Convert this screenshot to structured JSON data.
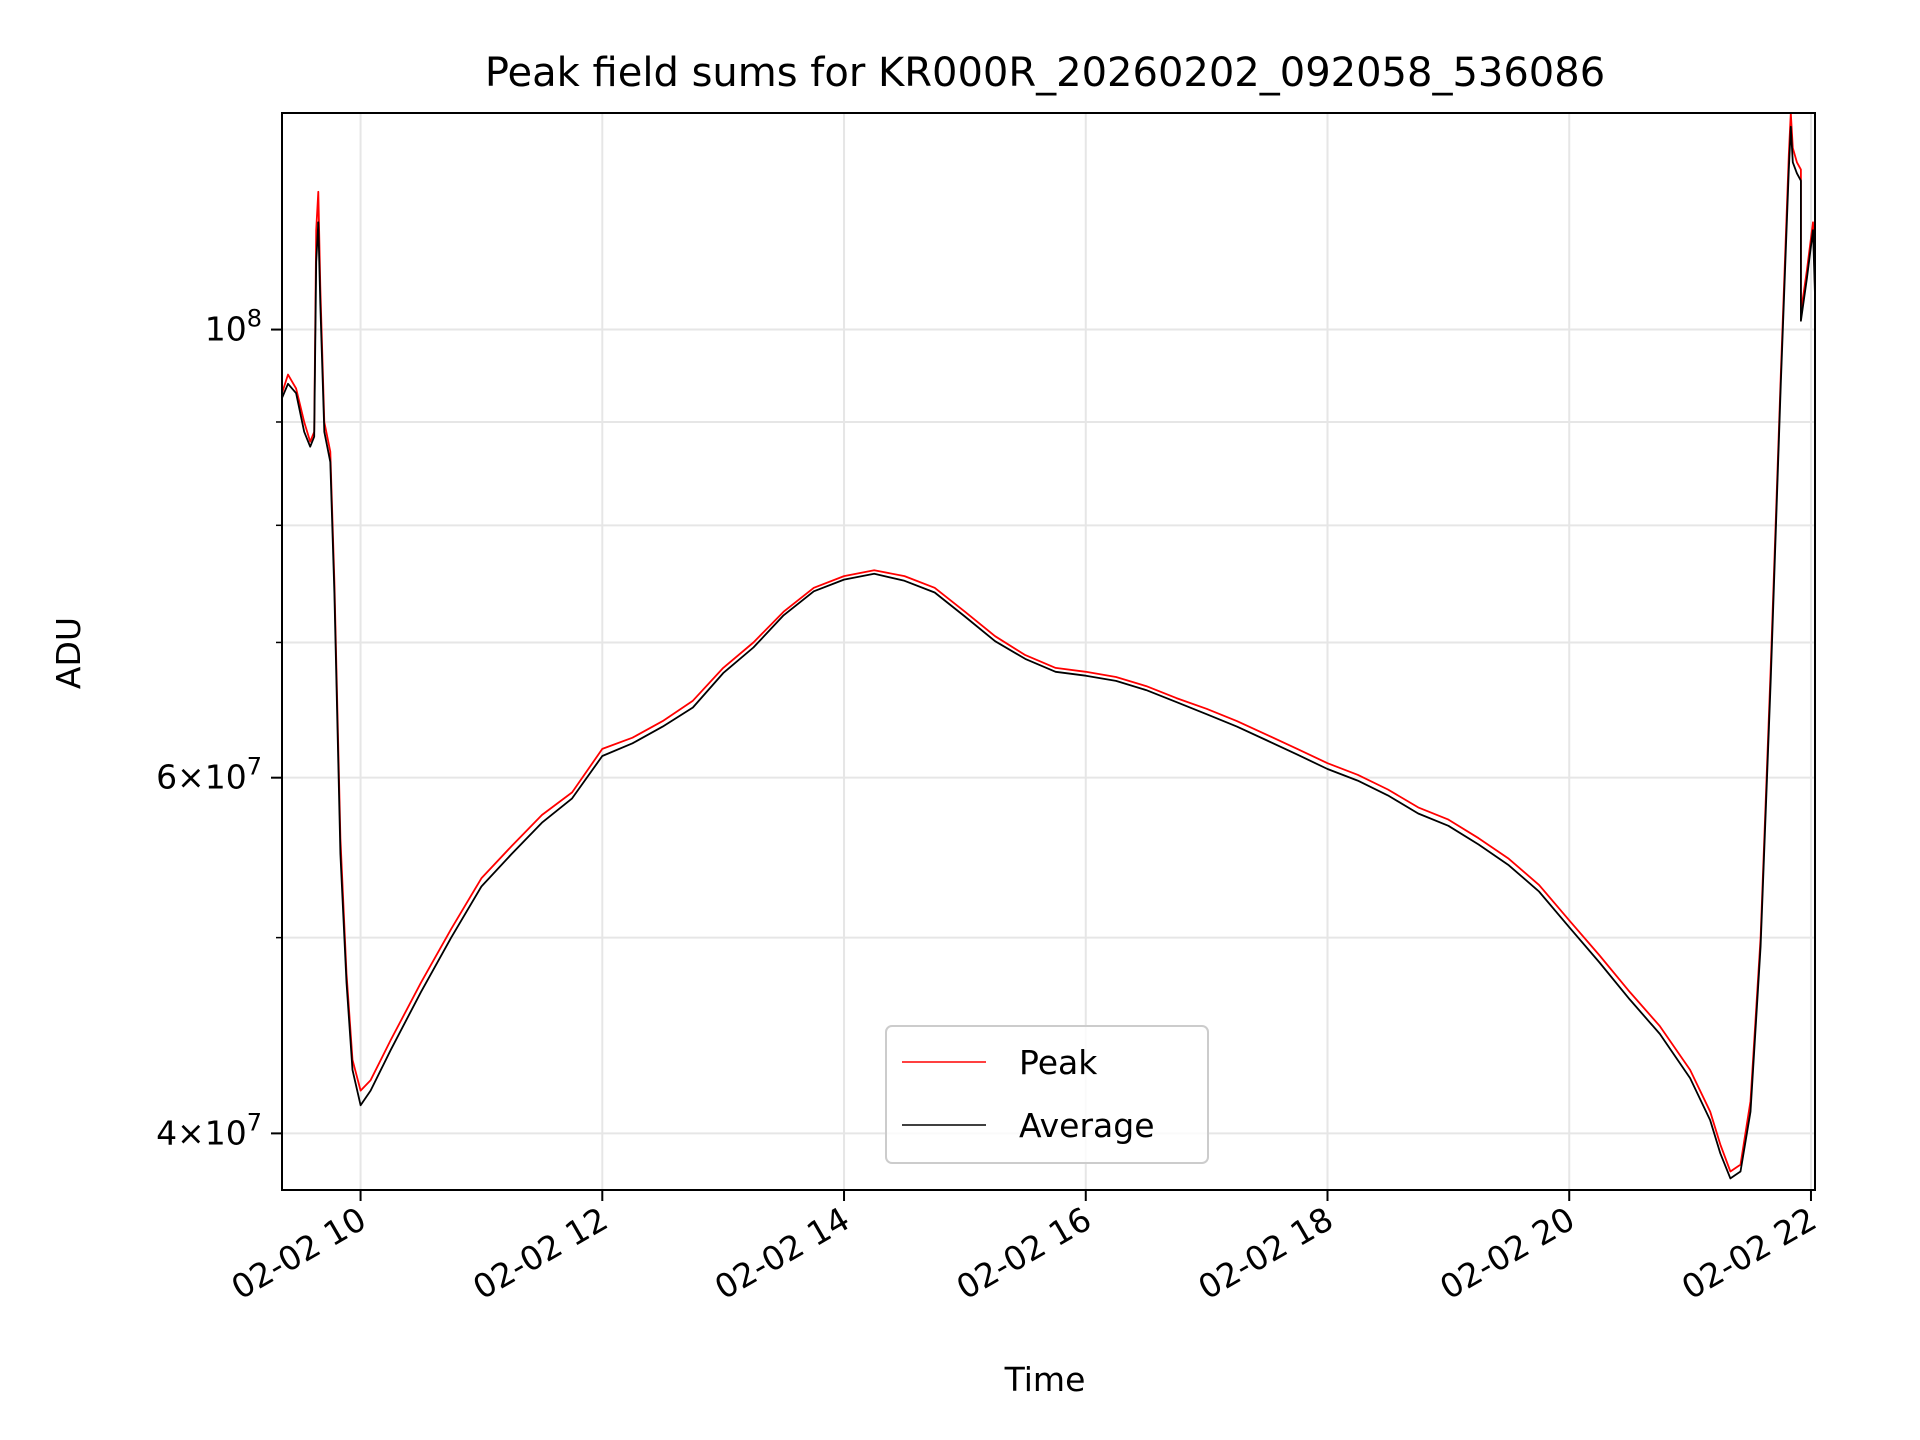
{
  "chart_data": {
    "type": "line",
    "title": "Peak field sums for KR000R_20260202_092058_536086",
    "xlabel": "Time",
    "ylabel": "ADU",
    "yscale": "log",
    "grid": true,
    "legend_position": "lower center",
    "xlim": [
      "02-02 09:21",
      "02-02 22:02"
    ],
    "ylim": [
      37500000,
      128000000
    ],
    "x_ticks": [
      {
        "t": "02-02 10:00",
        "label": "02-02 10"
      },
      {
        "t": "02-02 12:00",
        "label": "02-02 12"
      },
      {
        "t": "02-02 14:00",
        "label": "02-02 14"
      },
      {
        "t": "02-02 16:00",
        "label": "02-02 16"
      },
      {
        "t": "02-02 18:00",
        "label": "02-02 18"
      },
      {
        "t": "02-02 20:00",
        "label": "02-02 20"
      },
      {
        "t": "02-02 22:00",
        "label": "02-02 22"
      }
    ],
    "y_ticks_major": [
      {
        "value": 40000000,
        "base": "4",
        "exp": "7"
      },
      {
        "value": 60000000,
        "base": "6",
        "exp": "7"
      },
      {
        "value": 100000000,
        "base": "",
        "exp": "8"
      }
    ],
    "y_ticks_minor": [
      50000000,
      70000000,
      80000000,
      90000000
    ],
    "series": [
      {
        "name": "Peak",
        "color": "#ff0000",
        "points": [
          [
            "02-02 09:21",
            93000000
          ],
          [
            "02-02 09:24",
            95000000
          ],
          [
            "02-02 09:28",
            93500000
          ],
          [
            "02-02 09:32",
            90000000
          ],
          [
            "02-02 09:35",
            88000000
          ],
          [
            "02-02 09:37",
            89000000
          ],
          [
            "02-02 09:38",
            112000000
          ],
          [
            "02-02 09:39",
            117000000
          ],
          [
            "02-02 09:40",
            105000000
          ],
          [
            "02-02 09:42",
            90000000
          ],
          [
            "02-02 09:45",
            87000000
          ],
          [
            "02-02 09:47",
            75000000
          ],
          [
            "02-02 09:50",
            56000000
          ],
          [
            "02-02 09:53",
            48000000
          ],
          [
            "02-02 09:56",
            43500000
          ],
          [
            "02-02 10:00",
            42000000
          ],
          [
            "02-02 10:05",
            42500000
          ],
          [
            "02-02 10:15",
            44500000
          ],
          [
            "02-02 10:30",
            47500000
          ],
          [
            "02-02 10:45",
            50500000
          ],
          [
            "02-02 11:00",
            53500000
          ],
          [
            "02-02 11:15",
            55500000
          ],
          [
            "02-02 11:30",
            57500000
          ],
          [
            "02-02 11:45",
            59000000
          ],
          [
            "02-02 12:00",
            62000000
          ],
          [
            "02-02 12:15",
            62800000
          ],
          [
            "02-02 12:30",
            64000000
          ],
          [
            "02-02 12:45",
            65500000
          ],
          [
            "02-02 13:00",
            68000000
          ],
          [
            "02-02 13:15",
            70000000
          ],
          [
            "02-02 13:30",
            72500000
          ],
          [
            "02-02 13:45",
            74500000
          ],
          [
            "02-02 14:00",
            75500000
          ],
          [
            "02-02 14:15",
            76000000
          ],
          [
            "02-02 14:30",
            75500000
          ],
          [
            "02-02 14:45",
            74500000
          ],
          [
            "02-02 15:00",
            72500000
          ],
          [
            "02-02 15:15",
            70500000
          ],
          [
            "02-02 15:30",
            69000000
          ],
          [
            "02-02 15:45",
            68000000
          ],
          [
            "02-02 16:00",
            67700000
          ],
          [
            "02-02 16:15",
            67300000
          ],
          [
            "02-02 16:30",
            66600000
          ],
          [
            "02-02 16:45",
            65700000
          ],
          [
            "02-02 17:00",
            64900000
          ],
          [
            "02-02 17:15",
            64000000
          ],
          [
            "02-02 17:30",
            63000000
          ],
          [
            "02-02 17:45",
            62000000
          ],
          [
            "02-02 18:00",
            61000000
          ],
          [
            "02-02 18:15",
            60200000
          ],
          [
            "02-02 18:30",
            59200000
          ],
          [
            "02-02 18:45",
            58000000
          ],
          [
            "02-02 19:00",
            57200000
          ],
          [
            "02-02 19:15",
            56000000
          ],
          [
            "02-02 19:30",
            54700000
          ],
          [
            "02-02 19:45",
            53100000
          ],
          [
            "02-02 20:00",
            51000000
          ],
          [
            "02-02 20:15",
            49000000
          ],
          [
            "02-02 20:30",
            47000000
          ],
          [
            "02-02 20:45",
            45200000
          ],
          [
            "02-02 21:00",
            43000000
          ],
          [
            "02-02 21:10",
            41000000
          ],
          [
            "02-02 21:15",
            39500000
          ],
          [
            "02-02 21:20",
            38300000
          ],
          [
            "02-02 21:25",
            38600000
          ],
          [
            "02-02 21:30",
            41500000
          ],
          [
            "02-02 21:35",
            50000000
          ],
          [
            "02-02 21:40",
            68000000
          ],
          [
            "02-02 21:45",
            95000000
          ],
          [
            "02-02 21:49",
            122000000
          ],
          [
            "02-02 21:50",
            128000000
          ],
          [
            "02-02 21:51",
            123000000
          ],
          [
            "02-02 21:53",
            121000000
          ],
          [
            "02-02 21:55",
            120000000
          ],
          [
            "02-02 21:55",
            102000000
          ],
          [
            "02-02 21:58",
            107000000
          ],
          [
            "02-02 22:00",
            111000000
          ],
          [
            "02-02 22:01",
            113000000
          ],
          [
            "02-02 22:02",
            105000000
          ]
        ]
      },
      {
        "name": "Average",
        "color": "#000000",
        "points": [
          [
            "02-02 09:21",
            92500000
          ],
          [
            "02-02 09:24",
            94000000
          ],
          [
            "02-02 09:28",
            93000000
          ],
          [
            "02-02 09:32",
            89000000
          ],
          [
            "02-02 09:35",
            87500000
          ],
          [
            "02-02 09:37",
            88500000
          ],
          [
            "02-02 09:38",
            108000000
          ],
          [
            "02-02 09:39",
            113000000
          ],
          [
            "02-02 09:40",
            103000000
          ],
          [
            "02-02 09:42",
            89000000
          ],
          [
            "02-02 09:45",
            86000000
          ],
          [
            "02-02 09:47",
            74000000
          ],
          [
            "02-02 09:50",
            55000000
          ],
          [
            "02-02 09:53",
            47500000
          ],
          [
            "02-02 09:56",
            43000000
          ],
          [
            "02-02 10:00",
            41300000
          ],
          [
            "02-02 10:05",
            42000000
          ],
          [
            "02-02 10:15",
            44000000
          ],
          [
            "02-02 10:30",
            47000000
          ],
          [
            "02-02 10:45",
            50000000
          ],
          [
            "02-02 11:00",
            53000000
          ],
          [
            "02-02 11:15",
            55000000
          ],
          [
            "02-02 11:30",
            57000000
          ],
          [
            "02-02 11:45",
            58600000
          ],
          [
            "02-02 12:00",
            61500000
          ],
          [
            "02-02 12:15",
            62400000
          ],
          [
            "02-02 12:30",
            63600000
          ],
          [
            "02-02 12:45",
            65000000
          ],
          [
            "02-02 13:00",
            67600000
          ],
          [
            "02-02 13:15",
            69600000
          ],
          [
            "02-02 13:30",
            72200000
          ],
          [
            "02-02 13:45",
            74200000
          ],
          [
            "02-02 14:00",
            75200000
          ],
          [
            "02-02 14:15",
            75700000
          ],
          [
            "02-02 14:30",
            75100000
          ],
          [
            "02-02 14:45",
            74100000
          ],
          [
            "02-02 15:00",
            72100000
          ],
          [
            "02-02 15:15",
            70100000
          ],
          [
            "02-02 15:30",
            68700000
          ],
          [
            "02-02 15:45",
            67700000
          ],
          [
            "02-02 16:00",
            67400000
          ],
          [
            "02-02 16:15",
            67000000
          ],
          [
            "02-02 16:30",
            66300000
          ],
          [
            "02-02 16:45",
            65400000
          ],
          [
            "02-02 17:00",
            64500000
          ],
          [
            "02-02 17:15",
            63600000
          ],
          [
            "02-02 17:30",
            62600000
          ],
          [
            "02-02 17:45",
            61600000
          ],
          [
            "02-02 18:00",
            60600000
          ],
          [
            "02-02 18:15",
            59800000
          ],
          [
            "02-02 18:30",
            58800000
          ],
          [
            "02-02 18:45",
            57600000
          ],
          [
            "02-02 19:00",
            56800000
          ],
          [
            "02-02 19:15",
            55600000
          ],
          [
            "02-02 19:30",
            54300000
          ],
          [
            "02-02 19:45",
            52700000
          ],
          [
            "02-02 20:00",
            50600000
          ],
          [
            "02-02 20:15",
            48600000
          ],
          [
            "02-02 20:30",
            46600000
          ],
          [
            "02-02 20:45",
            44800000
          ],
          [
            "02-02 21:00",
            42600000
          ],
          [
            "02-02 21:10",
            40600000
          ],
          [
            "02-02 21:15",
            39100000
          ],
          [
            "02-02 21:20",
            38000000
          ],
          [
            "02-02 21:25",
            38300000
          ],
          [
            "02-02 21:30",
            41000000
          ],
          [
            "02-02 21:35",
            49500000
          ],
          [
            "02-02 21:40",
            67000000
          ],
          [
            "02-02 21:45",
            94000000
          ],
          [
            "02-02 21:49",
            120000000
          ],
          [
            "02-02 21:50",
            126000000
          ],
          [
            "02-02 21:51",
            121000000
          ],
          [
            "02-02 21:53",
            119500000
          ],
          [
            "02-02 21:55",
            118500000
          ],
          [
            "02-02 21:55",
            101000000
          ],
          [
            "02-02 21:58",
            106000000
          ],
          [
            "02-02 22:00",
            110000000
          ],
          [
            "02-02 22:01",
            112000000
          ],
          [
            "02-02 22:02",
            104000000
          ]
        ]
      }
    ]
  }
}
